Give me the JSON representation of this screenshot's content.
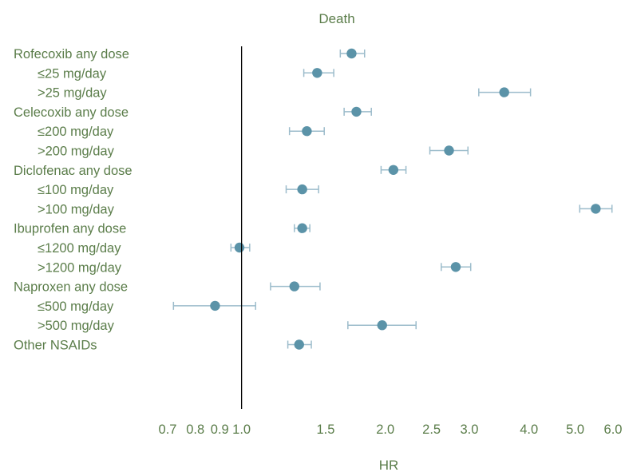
{
  "chart_data": {
    "type": "scatter",
    "subtype": "forest-plot",
    "title": "Death",
    "xlabel": "HR",
    "xscale": "log",
    "xlim": [
      0.7,
      6.0
    ],
    "reference_line": 1.0,
    "xticks": [
      0.7,
      0.8,
      0.9,
      1.0,
      1.5,
      2.0,
      2.5,
      3.0,
      4.0,
      5.0,
      6.0
    ],
    "xtick_labels": [
      "0.7",
      "0.8",
      "0.9",
      "1.0",
      "1.5",
      "2.0",
      "2.5",
      "3.0",
      "4.0",
      "5.0",
      "6.0"
    ],
    "colors": {
      "text": "#5b7d4a",
      "point": "#5b93a8",
      "ci": "#9cbccb",
      "reference": "#000000"
    },
    "rows": [
      {
        "label": "Rofecoxib any dose",
        "indent": false,
        "hr": 1.7,
        "lo": 1.61,
        "hi": 1.81
      },
      {
        "label": "≤25 mg/day",
        "indent": true,
        "hr": 1.44,
        "lo": 1.35,
        "hi": 1.56
      },
      {
        "label": ">25 mg/day",
        "indent": true,
        "hr": 3.55,
        "lo": 3.14,
        "hi": 4.03
      },
      {
        "label": "Celecoxib any dose",
        "indent": false,
        "hr": 1.74,
        "lo": 1.64,
        "hi": 1.87
      },
      {
        "label": "≤200 mg/day",
        "indent": true,
        "hr": 1.37,
        "lo": 1.26,
        "hi": 1.49
      },
      {
        "label": ">200 mg/day",
        "indent": true,
        "hr": 2.72,
        "lo": 2.48,
        "hi": 2.98
      },
      {
        "label": "Diclofenac any dose",
        "indent": false,
        "hr": 2.08,
        "lo": 1.96,
        "hi": 2.21
      },
      {
        "label": "≤100 mg/day",
        "indent": true,
        "hr": 1.34,
        "lo": 1.24,
        "hi": 1.45
      },
      {
        "label": ">100 mg/day",
        "indent": true,
        "hr": 5.52,
        "lo": 5.11,
        "hi": 5.97
      },
      {
        "label": "Ibuprofen any dose",
        "indent": false,
        "hr": 1.34,
        "lo": 1.29,
        "hi": 1.39
      },
      {
        "label": "≤1200 mg/day",
        "indent": true,
        "hr": 0.99,
        "lo": 0.95,
        "hi": 1.04
      },
      {
        "label": ">1200 mg/day",
        "indent": true,
        "hr": 2.81,
        "lo": 2.62,
        "hi": 3.02
      },
      {
        "label": "Naproxen any dose",
        "indent": false,
        "hr": 1.29,
        "lo": 1.15,
        "hi": 1.46
      },
      {
        "label": "≤500 mg/day",
        "indent": true,
        "hr": 0.88,
        "lo": 0.72,
        "hi": 1.07
      },
      {
        "label": ">500 mg/day",
        "indent": true,
        "hr": 1.97,
        "lo": 1.67,
        "hi": 2.32
      },
      {
        "label": "Other NSAIDs",
        "indent": false,
        "hr": 1.32,
        "lo": 1.25,
        "hi": 1.4
      }
    ]
  }
}
